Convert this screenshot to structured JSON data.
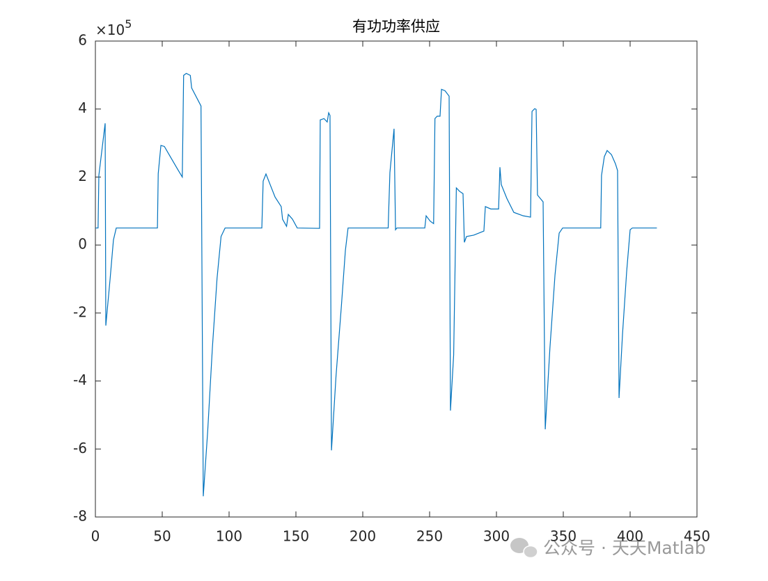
{
  "chart_data": {
    "type": "line",
    "title": "有功功率供应",
    "y_multiplier": {
      "base": "×10",
      "exponent": "5"
    },
    "watermark": "公众号 · 天天Matlab",
    "x": [
      0,
      2,
      2.6,
      7.3,
      7.8,
      11,
      13.5,
      15.6,
      46.4,
      47,
      49,
      51.6,
      56,
      61.5,
      65,
      66,
      68,
      71,
      72,
      79,
      80.7,
      84,
      87.5,
      91,
      94,
      97,
      124.5,
      125.5,
      127.6,
      130.7,
      134.4,
      139,
      140,
      143,
      144.3,
      147.4,
      151,
      167.7,
      168.2,
      171,
      173.4,
      174.5,
      175.5,
      176.6,
      180,
      184,
      187,
      189,
      219,
      220.3,
      223.4,
      224.5,
      225.5,
      246.4,
      247.4,
      250.5,
      253,
      254,
      255.7,
      257.8,
      258.9,
      261.5,
      264.6,
      265.6,
      268,
      270,
      272.4,
      275,
      276,
      277.6,
      283,
      290.6,
      291.7,
      295.8,
      301.6,
      302.6,
      303.6,
      307.8,
      313,
      320,
      325.5,
      326.6,
      328.6,
      329.7,
      330.7,
      334.9,
      336.5,
      340,
      343.8,
      346.9,
      349.5,
      378,
      378.6,
      380.7,
      382.8,
      386,
      389,
      390.6,
      391.7,
      394.3,
      397.4,
      400,
      401.6,
      420
    ],
    "series": [
      {
        "name": "有功功率",
        "color": "#0072bd",
        "values": [
          0.5,
          0.5,
          2.05,
          3.58,
          -2.37,
          -1.0,
          0.15,
          0.5,
          0.5,
          2.1,
          2.93,
          2.9,
          2.6,
          2.23,
          2.0,
          4.99,
          5.05,
          4.99,
          4.62,
          4.09,
          -7.39,
          -5.48,
          -3.03,
          -0.98,
          0.25,
          0.5,
          0.5,
          1.88,
          2.09,
          1.78,
          1.41,
          1.13,
          0.76,
          0.55,
          0.9,
          0.76,
          0.5,
          0.49,
          3.68,
          3.72,
          3.62,
          3.89,
          3.81,
          -6.04,
          -3.85,
          -1.8,
          -0.16,
          0.5,
          0.5,
          2.13,
          3.42,
          0.45,
          0.5,
          0.5,
          0.86,
          0.7,
          0.63,
          3.72,
          3.79,
          3.79,
          4.58,
          4.54,
          4.38,
          -4.87,
          -3.23,
          1.68,
          1.58,
          1.51,
          0.08,
          0.25,
          0.29,
          0.41,
          1.13,
          1.06,
          1.06,
          2.29,
          1.78,
          1.37,
          0.96,
          0.86,
          0.82,
          3.93,
          4.01,
          3.99,
          1.47,
          1.27,
          -5.42,
          -3.03,
          -0.88,
          0.35,
          0.5,
          0.5,
          2.05,
          2.6,
          2.78,
          2.66,
          2.39,
          2.19,
          -4.5,
          -2.62,
          -0.78,
          0.45,
          0.5,
          0.5
        ]
      }
    ],
    "xlim": [
      0,
      450
    ],
    "xticks": [
      0,
      50,
      100,
      150,
      200,
      250,
      300,
      350,
      400,
      450
    ],
    "ylim": [
      -8,
      6
    ],
    "yticks": [
      -8,
      -6,
      -4,
      -2,
      0,
      2,
      4,
      6
    ],
    "grid": false,
    "box": true
  }
}
